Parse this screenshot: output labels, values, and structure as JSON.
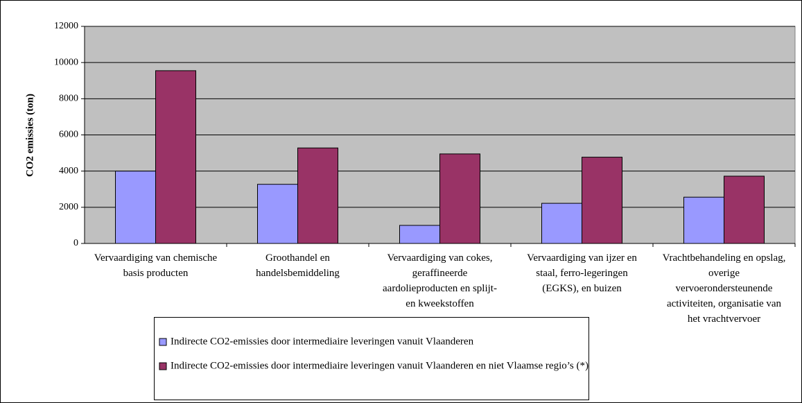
{
  "chart_data": {
    "type": "bar",
    "y_label": "CO2 emissies (ton)",
    "categories": [
      "Vervaardiging van chemische basis producten",
      "Groothandel en handelsbemiddeling",
      "Vervaardiging van cokes, geraffineerde aardolieproducten en splijt- en kweekstoffen",
      "Vervaardiging van ijzer en staal, ferro-legeringen (EGKS), en buizen",
      "Vrachtbehandeling en opslag, overige vervoerondersteunende activiteiten, organisatie van het vrachtvervoer"
    ],
    "series": [
      {
        "name": "Indirecte CO2-emissies door intermediaire leveringen vanuit Vlaanderen",
        "color": "#9999ff",
        "values": [
          4000,
          3270,
          1000,
          2220,
          2560
        ]
      },
      {
        "name": "Indirecte CO2-emissies door intermediaire leveringen vanuit Vlaanderen en niet Vlaamse regio’s (*)",
        "color": "#993366",
        "values": [
          9550,
          5280,
          4950,
          4770,
          3720
        ]
      }
    ],
    "ylim": [
      0,
      12000
    ],
    "yticks": [
      0,
      2000,
      4000,
      6000,
      8000,
      10000,
      12000
    ],
    "grid": true,
    "plot_background": "#c0c0c0",
    "legend": "bottom"
  }
}
